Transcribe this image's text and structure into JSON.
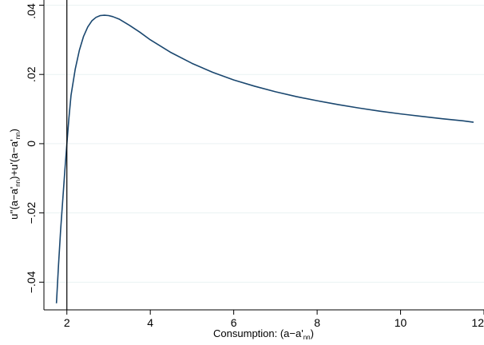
{
  "chart_data": {
    "type": "line",
    "title": "",
    "xlabel": {
      "main": "Consumption: (a−a'",
      "sub": "nn",
      "tail": ")"
    },
    "ylabel": {
      "p1": "u''(a−a'",
      "s1": "nn",
      "p2": ")+u'(a−a'",
      "s2": "nn",
      "p3": ")"
    },
    "xlim": [
      1.45,
      12.0
    ],
    "ylim": [
      -0.048,
      0.0415
    ],
    "xticks": [
      {
        "v": 2,
        "label": "2"
      },
      {
        "v": 4,
        "label": "4"
      },
      {
        "v": 6,
        "label": "6"
      },
      {
        "v": 8,
        "label": "8"
      },
      {
        "v": 10,
        "label": "10"
      },
      {
        "v": 12,
        "label": "12"
      }
    ],
    "yticks": [
      {
        "v": -0.04,
        "label": "−.04"
      },
      {
        "v": -0.02,
        "label": "−.02"
      },
      {
        "v": 0,
        "label": "0"
      },
      {
        "v": 0.02,
        "label": ".02"
      },
      {
        "v": 0.04,
        "label": ".04"
      }
    ],
    "grid": true,
    "vline": 2,
    "series": [
      {
        "color": "#1a476f",
        "x": [
          1.75,
          1.8,
          1.85,
          1.9,
          1.95,
          2.0,
          2.05,
          2.1,
          2.2,
          2.3,
          2.4,
          2.5,
          2.6,
          2.7,
          2.8,
          2.9,
          3.0,
          3.1,
          3.25,
          3.5,
          3.75,
          4.0,
          4.5,
          5.0,
          5.5,
          6.0,
          6.5,
          7.0,
          7.5,
          8.0,
          8.5,
          9.0,
          9.5,
          10.0,
          10.5,
          11.0,
          11.5,
          11.75
        ],
        "y": [
          -0.0461,
          -0.035,
          -0.025,
          -0.0165,
          -0.008,
          0.0,
          0.0075,
          0.014,
          0.0215,
          0.027,
          0.031,
          0.0337,
          0.0355,
          0.0365,
          0.037,
          0.0371,
          0.037,
          0.0367,
          0.036,
          0.0342,
          0.0322,
          0.03,
          0.0263,
          0.0232,
          0.0206,
          0.0184,
          0.0166,
          0.015,
          0.0136,
          0.0124,
          0.0113,
          0.0103,
          0.0094,
          0.0086,
          0.0079,
          0.0072,
          0.0066,
          0.0062
        ]
      }
    ]
  }
}
